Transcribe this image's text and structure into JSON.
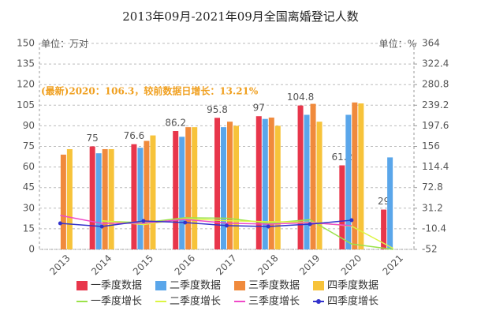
{
  "chart_data": {
    "type": "bar",
    "title": "2013年09月-2021年09月全国离婚登记人数",
    "y_label": "单位：万对",
    "y2_label": "单位：%",
    "annotation": "(最新)2020：106.3，较前数据日增长：13.21%",
    "categories": [
      "2013",
      "2014",
      "2015",
      "2016",
      "2017",
      "2018",
      "2019",
      "2020",
      "2021"
    ],
    "ylim": [
      0,
      150
    ],
    "yticks": [
      0,
      15,
      30,
      45,
      60,
      75,
      90,
      105,
      120,
      135,
      150
    ],
    "y2lim": [
      -52,
      364
    ],
    "y2ticks": [
      -52,
      -10.4,
      31.2,
      72.8,
      114.4,
      156,
      197.6,
      239.2,
      280.8,
      322.4,
      364
    ],
    "grid": true,
    "series": [
      {
        "name": "一季度数据",
        "color": "#e8364b",
        "values": [
          null,
          75,
          76.6,
          86.2,
          95.8,
          97,
          104.8,
          61.2,
          29
        ],
        "show_labels": true
      },
      {
        "name": "二季度数据",
        "color": "#5aa6ea",
        "values": [
          null,
          70,
          74,
          82,
          89,
          95,
          98,
          98,
          67
        ]
      },
      {
        "name": "三季度数据",
        "color": "#f08a3c",
        "values": [
          69,
          73,
          79,
          89,
          93,
          96,
          106,
          107,
          null
        ]
      },
      {
        "name": "四季度数据",
        "color": "#f7c33a",
        "values": [
          73,
          73,
          83,
          89,
          90,
          90,
          93,
          106.3,
          null
        ]
      },
      {
        "name": "一季度增长",
        "color": "#9be24a",
        "axis": "y2",
        "type": "line",
        "values": [
          null,
          5,
          2,
          12,
          11,
          1,
          8,
          -41,
          -52
        ]
      },
      {
        "name": "二季度增长",
        "color": "#dcf542",
        "axis": "y2",
        "type": "line",
        "values": [
          null,
          6,
          -2,
          10,
          6,
          4,
          3,
          -5,
          -50
        ]
      },
      {
        "name": "三季度增长",
        "color": "#f049c8",
        "axis": "y2",
        "type": "line",
        "values": [
          16.5,
          0.6,
          1,
          8.6,
          1,
          -1,
          2,
          -4,
          null
        ]
      },
      {
        "name": "四季度增长",
        "color": "#3333cc",
        "axis": "y2",
        "type": "line",
        "marker": true,
        "values": [
          0.6,
          -5.8,
          5.4,
          2.2,
          -4,
          -5.8,
          -1,
          7,
          null
        ]
      }
    ]
  }
}
